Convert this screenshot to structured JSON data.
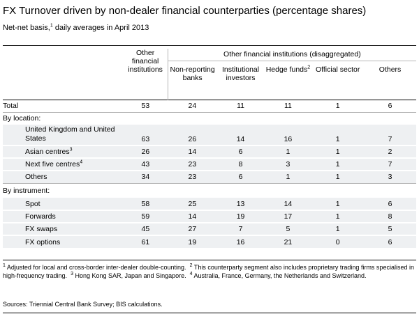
{
  "title": "FX Turnover driven by non-dealer financial counterparties (percentage shares)",
  "subtitle": {
    "text": "Net-net basis,",
    "sup": "1",
    "rest": " daily averages in April 2013"
  },
  "header": {
    "group_label": "Other financial institutions (disaggregated)",
    "col_ofi": "Other financial institutions",
    "col_nonrep": "Non-reporting banks",
    "col_inst": "Institutional investors",
    "col_hedge": "Hedge funds",
    "col_hedge_sup": "2",
    "col_official": "Official sector",
    "col_others": "Others"
  },
  "total": {
    "label": "Total",
    "values": [
      "53",
      "24",
      "11",
      "11",
      "1",
      "6"
    ]
  },
  "by_location": {
    "label": "By location:",
    "rows": [
      {
        "label": "United Kingdom and United States",
        "sup": "",
        "values": [
          "63",
          "26",
          "14",
          "16",
          "1",
          "7"
        ]
      },
      {
        "label": "Asian centres",
        "sup": "3",
        "values": [
          "26",
          "14",
          "6",
          "1",
          "1",
          "2"
        ]
      },
      {
        "label": "Next five centres",
        "sup": "4",
        "values": [
          "43",
          "23",
          "8",
          "3",
          "1",
          "7"
        ]
      },
      {
        "label": "Others",
        "sup": "",
        "values": [
          "34",
          "23",
          "6",
          "1",
          "1",
          "3"
        ]
      }
    ]
  },
  "by_instrument": {
    "label": "By instrument:",
    "rows": [
      {
        "label": "Spot",
        "sup": "",
        "values": [
          "58",
          "25",
          "13",
          "14",
          "1",
          "6"
        ]
      },
      {
        "label": "Forwards",
        "sup": "",
        "values": [
          "59",
          "14",
          "19",
          "17",
          "1",
          "8"
        ]
      },
      {
        "label": "FX swaps",
        "sup": "",
        "values": [
          "45",
          "27",
          "7",
          "5",
          "1",
          "5"
        ]
      },
      {
        "label": "FX options",
        "sup": "",
        "values": [
          "61",
          "19",
          "16",
          "21",
          "0",
          "6"
        ]
      }
    ]
  },
  "footnotes": {
    "n1_mark": "1",
    "n1": " Adjusted for local and cross-border inter-dealer double-counting.",
    "n2_mark": "2",
    "n2": " This counterparty segment also includes proprietary trading firms specialised in high-frequency trading.",
    "n3_mark": "3",
    "n3": " Hong Kong SAR, Japan and Singapore.",
    "n4_mark": "4",
    "n4": " Australia, France, Germany, the Netherlands and Switzerland."
  },
  "sources": "Sources: Triennial Central Bank Survey; BIS calculations."
}
